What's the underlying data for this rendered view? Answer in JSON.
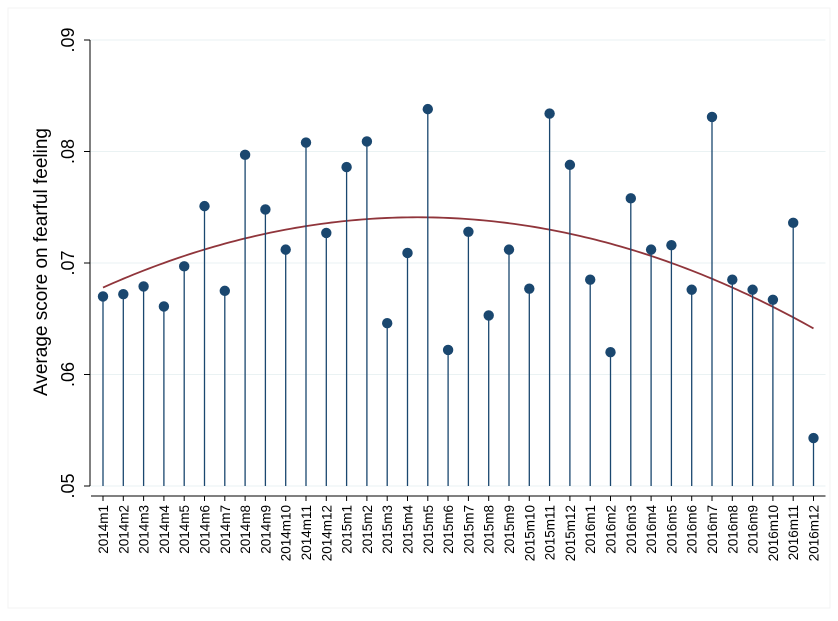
{
  "chart_data": {
    "type": "scatter",
    "subtype": "dropline-with-quadratic-fit",
    "ylabel": "Average score on fearful feeling",
    "ylim": [
      0.05,
      0.09
    ],
    "yticks": [
      ".05",
      ".06",
      ".07",
      ".08",
      ".09"
    ],
    "ytick_values": [
      0.05,
      0.06,
      0.07,
      0.08,
      0.09
    ],
    "grid": true,
    "categories": [
      "2014m1",
      "2014m2",
      "2014m3",
      "2014m4",
      "2014m5",
      "2014m6",
      "2014m7",
      "2014m8",
      "2014m9",
      "2014m10",
      "2014m11",
      "2014m12",
      "2015m1",
      "2015m2",
      "2015m3",
      "2015m4",
      "2015m5",
      "2015m6",
      "2015m7",
      "2015m8",
      "2015m9",
      "2015m10",
      "2015m11",
      "2015m12",
      "2016m1",
      "2016m2",
      "2016m3",
      "2016m4",
      "2016m5",
      "2016m6",
      "2016m7",
      "2016m8",
      "2016m9",
      "2016m10",
      "2016m11",
      "2016m12"
    ],
    "values": [
      0.067,
      0.0672,
      0.0679,
      0.0661,
      0.0697,
      0.0751,
      0.0675,
      0.0797,
      0.0748,
      0.0712,
      0.0808,
      0.0727,
      0.0786,
      0.0809,
      0.0646,
      0.0709,
      0.0838,
      0.0622,
      0.0728,
      0.0653,
      0.0712,
      0.0677,
      0.0834,
      0.0788,
      0.0685,
      0.062,
      0.0758,
      0.0712,
      0.0716,
      0.0676,
      0.0831,
      0.0685,
      0.0676,
      0.0667,
      0.0736,
      0.0543
    ],
    "fit": {
      "type": "quadratic",
      "y_start": 0.0678,
      "y_peak": 0.0741,
      "peak_index": 15.5,
      "y_end": 0.0653
    },
    "colors": {
      "marker": "#1a476f",
      "fit": "#90353b",
      "grid": "#eaf2f3",
      "axis": "#000000"
    }
  }
}
